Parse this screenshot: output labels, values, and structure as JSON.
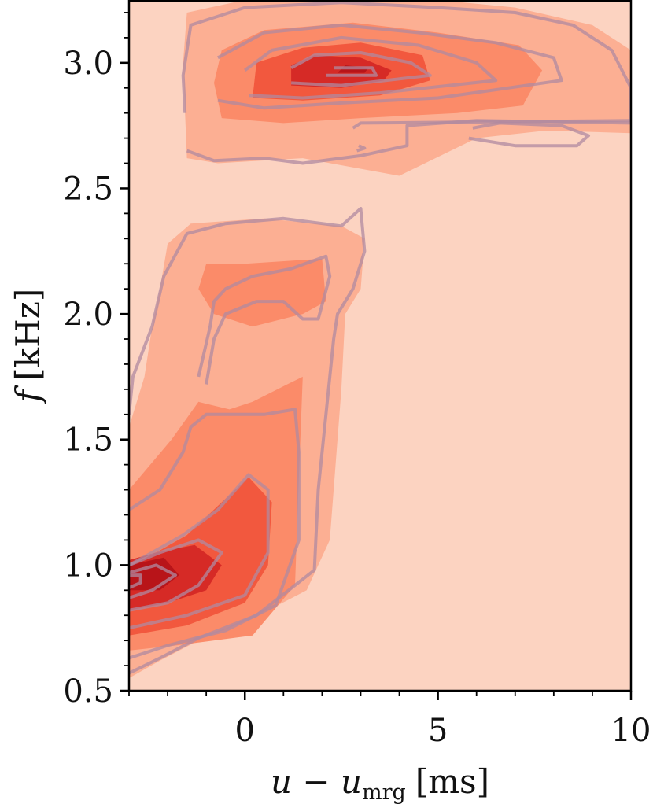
{
  "chart_data": {
    "type": "heatmap",
    "title": "",
    "xlabel": {
      "main": "u − u",
      "sub": "mrg",
      "unit": "[ms]"
    },
    "ylabel": {
      "main": "f",
      "unit": "[kHz]"
    },
    "xlim": [
      -3,
      10
    ],
    "ylim": [
      0.5,
      3.25
    ],
    "xticks": [
      0,
      5,
      10
    ],
    "xtick_labels": [
      "0",
      "5",
      "10"
    ],
    "yticks": [
      0.5,
      1.0,
      1.5,
      2.0,
      2.5,
      3.0
    ],
    "ytick_labels": [
      "0.5",
      "1.0",
      "1.5",
      "2.0",
      "2.5",
      "3.0"
    ],
    "colormap": "Reds",
    "background_color": "#fcd3c1",
    "level_colors": [
      "#fcd3c1",
      "#fcaf93",
      "#fb8b69",
      "#f2583e",
      "#d62a26",
      "#b81419"
    ],
    "contour_line_color": "#b08aa0",
    "grid": false,
    "legend": "none",
    "filled_regions": [
      {
        "level": 1,
        "points": [
          [
            -3,
            0.55
          ],
          [
            -2.2,
            0.62
          ],
          [
            -1.2,
            0.7
          ],
          [
            0.1,
            0.78
          ],
          [
            1.6,
            0.9
          ],
          [
            2.2,
            1.1
          ],
          [
            2.5,
            1.7
          ],
          [
            2.6,
            2.0
          ],
          [
            3,
            2.1
          ],
          [
            3.1,
            2.3
          ],
          [
            2.5,
            2.35
          ],
          [
            0.5,
            2.38
          ],
          [
            -1.4,
            2.36
          ],
          [
            -2,
            2.28
          ],
          [
            -2.2,
            2.1
          ],
          [
            -2.4,
            1.95
          ],
          [
            -2.6,
            1.75
          ],
          [
            -3,
            1.55
          ]
        ]
      },
      {
        "level": 1,
        "points": [
          [
            -1.5,
            2.62
          ],
          [
            -0.7,
            2.6
          ],
          [
            1.5,
            2.62
          ],
          [
            4,
            2.55
          ],
          [
            6,
            2.7
          ],
          [
            7.8,
            2.73
          ],
          [
            10,
            2.72
          ],
          [
            10,
            3.05
          ],
          [
            9,
            3.15
          ],
          [
            7,
            3.22
          ],
          [
            5,
            3.25
          ],
          [
            0,
            3.25
          ],
          [
            -1.5,
            3.2
          ],
          [
            -1.6,
            3.0
          ],
          [
            -1.55,
            2.8
          ]
        ]
      },
      {
        "level": 2,
        "points": [
          [
            -3,
            0.66
          ],
          [
            -1.8,
            0.68
          ],
          [
            0.2,
            0.72
          ],
          [
            1.3,
            0.92
          ],
          [
            1.4,
            1.35
          ],
          [
            1.5,
            1.75
          ],
          [
            1.1,
            1.72
          ],
          [
            0.2,
            1.65
          ],
          [
            -0.4,
            1.62
          ],
          [
            -1.2,
            1.65
          ],
          [
            -1.9,
            1.5
          ],
          [
            -3,
            1.3
          ]
        ]
      },
      {
        "level": 2,
        "points": [
          [
            -0.8,
            2.0
          ],
          [
            0.2,
            1.95
          ],
          [
            1.5,
            2.0
          ],
          [
            2.1,
            2.05
          ],
          [
            2,
            2.22
          ],
          [
            0,
            2.2
          ],
          [
            -1,
            2.2
          ],
          [
            -1.2,
            2.1
          ]
        ]
      },
      {
        "level": 2,
        "points": [
          [
            -0.6,
            2.78
          ],
          [
            1,
            2.76
          ],
          [
            3,
            2.78
          ],
          [
            5.5,
            2.8
          ],
          [
            7.2,
            2.83
          ],
          [
            7.7,
            2.97
          ],
          [
            7.1,
            3.07
          ],
          [
            5,
            3.12
          ],
          [
            2.8,
            3.16
          ],
          [
            0.5,
            3.13
          ],
          [
            -0.6,
            3.05
          ],
          [
            -0.8,
            2.92
          ]
        ]
      },
      {
        "level": 3,
        "points": [
          [
            -3,
            0.72
          ],
          [
            -1.5,
            0.76
          ],
          [
            0,
            0.85
          ],
          [
            0.6,
            1.0
          ],
          [
            0.7,
            1.25
          ],
          [
            0.1,
            1.35
          ],
          [
            -0.6,
            1.25
          ],
          [
            -1.5,
            1.12
          ],
          [
            -2.3,
            1.05
          ],
          [
            -3,
            1.0
          ]
        ]
      },
      {
        "level": 3,
        "points": [
          [
            0.2,
            2.86
          ],
          [
            1.5,
            2.85
          ],
          [
            3.5,
            2.87
          ],
          [
            4.8,
            2.93
          ],
          [
            4.6,
            3.03
          ],
          [
            3,
            3.08
          ],
          [
            1.5,
            3.06
          ],
          [
            0.3,
            3.0
          ]
        ]
      },
      {
        "level": 4,
        "points": [
          [
            -3,
            0.82
          ],
          [
            -2,
            0.85
          ],
          [
            -1,
            0.9
          ],
          [
            -0.6,
            1.0
          ],
          [
            -1.3,
            1.08
          ],
          [
            -2.3,
            1.05
          ],
          [
            -3,
            1.02
          ]
        ]
      },
      {
        "level": 4,
        "points": [
          [
            1.2,
            2.91
          ],
          [
            2.5,
            2.9
          ],
          [
            3.6,
            2.93
          ],
          [
            3.8,
            2.97
          ],
          [
            3,
            3.02
          ],
          [
            1.8,
            3.03
          ],
          [
            1.2,
            2.99
          ]
        ]
      },
      {
        "level": 5,
        "points": [
          [
            -3,
            0.9
          ],
          [
            -2.2,
            0.9
          ],
          [
            -1.7,
            0.96
          ],
          [
            -2.1,
            1.03
          ],
          [
            -3,
            1.0
          ]
        ]
      },
      {
        "level": 5,
        "points": [
          [
            2.4,
            2.96
          ],
          [
            3.1,
            2.96
          ],
          [
            3.2,
            2.98
          ],
          [
            2.6,
            2.99
          ]
        ]
      }
    ],
    "contour_lines": [
      [
        [
          -3,
          0.57
        ],
        [
          -2.2,
          0.63
        ],
        [
          -1.2,
          0.71
        ],
        [
          0.3,
          0.8
        ],
        [
          1.8,
          0.98
        ],
        [
          1.9,
          1.3
        ],
        [
          2.3,
          1.9
        ],
        [
          2.4,
          2.0
        ],
        [
          2.8,
          2.1
        ],
        [
          3.1,
          2.25
        ],
        [
          3.0,
          2.42
        ],
        [
          2.5,
          2.35
        ],
        [
          1.0,
          2.38
        ],
        [
          -0.5,
          2.36
        ],
        [
          -1.5,
          2.32
        ],
        [
          -2.1,
          2.15
        ],
        [
          -2.4,
          1.95
        ],
        [
          -2.9,
          1.75
        ],
        [
          -3,
          1.6
        ]
      ],
      [
        [
          -3,
          0.63
        ],
        [
          -2,
          0.68
        ],
        [
          -0.5,
          0.74
        ],
        [
          0.8,
          0.84
        ],
        [
          1.4,
          1.1
        ],
        [
          1.4,
          1.45
        ],
        [
          1.3,
          1.62
        ],
        [
          0.5,
          1.6
        ],
        [
          -0.3,
          1.6
        ],
        [
          -1.0,
          1.6
        ],
        [
          -1.4,
          1.55
        ],
        [
          -1.6,
          1.45
        ],
        [
          -2.2,
          1.3
        ],
        [
          -3,
          1.22
        ]
      ],
      [
        [
          -3,
          0.75
        ],
        [
          -1.5,
          0.8
        ],
        [
          0,
          0.88
        ],
        [
          0.6,
          1.05
        ],
        [
          0.6,
          1.3
        ],
        [
          0.1,
          1.36
        ],
        [
          -0.7,
          1.22
        ],
        [
          -1.6,
          1.12
        ],
        [
          -2.4,
          1.05
        ],
        [
          -3,
          1.0
        ]
      ],
      [
        [
          -3,
          0.82
        ],
        [
          -2,
          0.85
        ],
        [
          -1.2,
          0.92
        ],
        [
          -0.6,
          1.05
        ],
        [
          -1.2,
          1.1
        ],
        [
          -2.2,
          1.05
        ],
        [
          -3,
          1.0
        ]
      ],
      [
        [
          -3,
          0.87
        ],
        [
          -2.4,
          0.9
        ],
        [
          -1.8,
          0.96
        ],
        [
          -2.3,
          1.0
        ],
        [
          -3,
          0.97
        ]
      ],
      [
        [
          -3,
          0.91
        ],
        [
          -2.7,
          0.93
        ],
        [
          -2.7,
          0.96
        ],
        [
          -3,
          0.96
        ]
      ],
      [
        [
          -1.2,
          1.75
        ],
        [
          -0.9,
          1.95
        ],
        [
          -0.8,
          2.05
        ],
        [
          -0.5,
          2.1
        ],
        [
          0.2,
          2.15
        ],
        [
          1.2,
          2.18
        ],
        [
          2.1,
          2.23
        ],
        [
          2.2,
          2.15
        ],
        [
          1.9,
          1.98
        ],
        [
          1.5,
          1.98
        ],
        [
          1.0,
          2.05
        ],
        [
          0.3,
          2.05
        ],
        [
          -0.5,
          2.0
        ],
        [
          -0.8,
          1.9
        ],
        [
          -1.0,
          1.72
        ]
      ],
      [
        [
          -1.5,
          2.65
        ],
        [
          -0.8,
          2.61
        ],
        [
          0.5,
          2.62
        ],
        [
          1.5,
          2.6
        ],
        [
          3,
          2.63
        ],
        [
          4.2,
          2.67
        ],
        [
          4.2,
          2.75
        ],
        [
          6,
          2.77
        ],
        [
          10,
          2.76
        ],
        [
          10,
          2.9
        ],
        [
          9.5,
          3.05
        ],
        [
          8.5,
          3.15
        ],
        [
          7,
          3.2
        ],
        [
          5,
          3.22
        ],
        [
          2.5,
          3.24
        ],
        [
          0,
          3.22
        ],
        [
          -1.4,
          3.15
        ],
        [
          -1.6,
          2.95
        ],
        [
          -1.55,
          2.8
        ]
      ],
      [
        [
          -0.7,
          2.85
        ],
        [
          0.5,
          2.82
        ],
        [
          2.5,
          2.84
        ],
        [
          5,
          2.86
        ],
        [
          8.2,
          2.93
        ],
        [
          8,
          3.02
        ],
        [
          6.5,
          3.08
        ],
        [
          4.5,
          3.12
        ],
        [
          2.5,
          3.15
        ],
        [
          0.5,
          3.12
        ],
        [
          -0.7,
          3.02
        ]
      ],
      [
        [
          0.1,
          2.87
        ],
        [
          1.5,
          2.86
        ],
        [
          3.5,
          2.88
        ],
        [
          6.5,
          2.93
        ],
        [
          6,
          3.0
        ],
        [
          4.5,
          3.07
        ],
        [
          2.5,
          3.1
        ],
        [
          0.7,
          3.05
        ],
        [
          0.0,
          2.97
        ]
      ],
      [
        [
          1.2,
          2.92
        ],
        [
          2.5,
          2.91
        ],
        [
          4.8,
          2.95
        ],
        [
          4.3,
          3.0
        ],
        [
          3,
          3.04
        ],
        [
          1.8,
          3.03
        ],
        [
          1.2,
          2.98
        ]
      ],
      [
        [
          2.1,
          2.95
        ],
        [
          3.4,
          2.95
        ],
        [
          3.3,
          2.98
        ],
        [
          2.3,
          2.98
        ]
      ],
      [
        [
          2.8,
          2.74
        ],
        [
          3,
          2.76
        ],
        [
          10,
          2.77
        ]
      ],
      [
        [
          5.8,
          2.7
        ],
        [
          7,
          2.67
        ],
        [
          8.6,
          2.67
        ],
        [
          8.9,
          2.71
        ],
        [
          8.2,
          2.75
        ],
        [
          6.6,
          2.76
        ],
        [
          5.9,
          2.74
        ]
      ],
      [
        [
          2.9,
          2.65
        ],
        [
          3.1,
          2.66
        ],
        [
          2.95,
          2.67
        ]
      ]
    ]
  }
}
